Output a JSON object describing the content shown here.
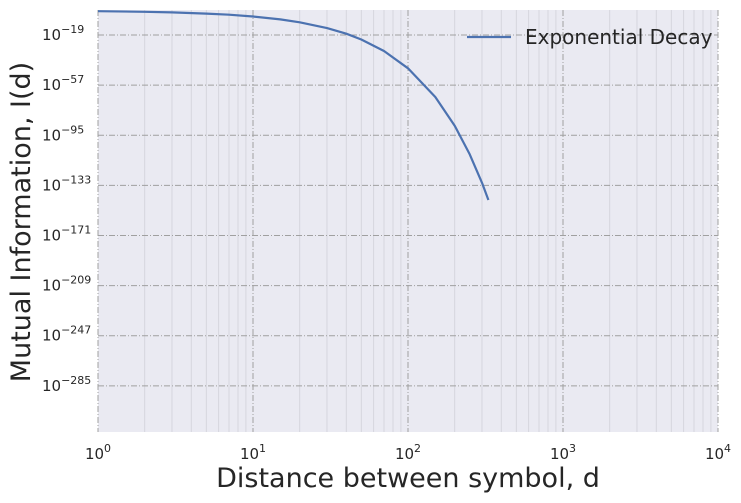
{
  "chart_data": {
    "type": "line",
    "title": "",
    "xlabel": "Distance between symbol, d",
    "ylabel": "Mutual Information, I(d)",
    "x_scale": "log",
    "y_scale": "log",
    "xlim": [
      1,
      10000
    ],
    "ylim_log10": [
      -320,
      0
    ],
    "x_ticks": [
      {
        "value": 1,
        "base": "10",
        "exp": "0"
      },
      {
        "value": 10,
        "base": "10",
        "exp": "1"
      },
      {
        "value": 100,
        "base": "10",
        "exp": "2"
      },
      {
        "value": 1000,
        "base": "10",
        "exp": "3"
      },
      {
        "value": 10000,
        "base": "10",
        "exp": "4"
      }
    ],
    "y_ticks": [
      {
        "log10": -19,
        "base": "10",
        "exp": "−19"
      },
      {
        "log10": -57,
        "base": "10",
        "exp": "−57"
      },
      {
        "log10": -95,
        "base": "10",
        "exp": "−95"
      },
      {
        "log10": -133,
        "base": "10",
        "exp": "−133"
      },
      {
        "log10": -171,
        "base": "10",
        "exp": "−171"
      },
      {
        "log10": -209,
        "base": "10",
        "exp": "−209"
      },
      {
        "log10": -247,
        "base": "10",
        "exp": "−247"
      },
      {
        "log10": -285,
        "base": "10",
        "exp": "−285"
      }
    ],
    "grid": true,
    "legend_position": "top-right",
    "series": [
      {
        "name": "Exponential Decay",
        "color": "#4c72b0",
        "x": [
          1,
          2,
          3,
          5,
          7,
          10,
          15,
          20,
          30,
          40,
          50,
          70,
          100,
          150,
          200,
          250,
          300,
          330
        ],
        "y_log10": [
          -0.9,
          -1.4,
          -1.8,
          -2.7,
          -3.6,
          -4.9,
          -7.1,
          -9.3,
          -13.7,
          -18.0,
          -22.4,
          -31.1,
          -44.2,
          -66.0,
          -87.7,
          -109.4,
          -131.0,
          -144.1
        ]
      }
    ]
  }
}
